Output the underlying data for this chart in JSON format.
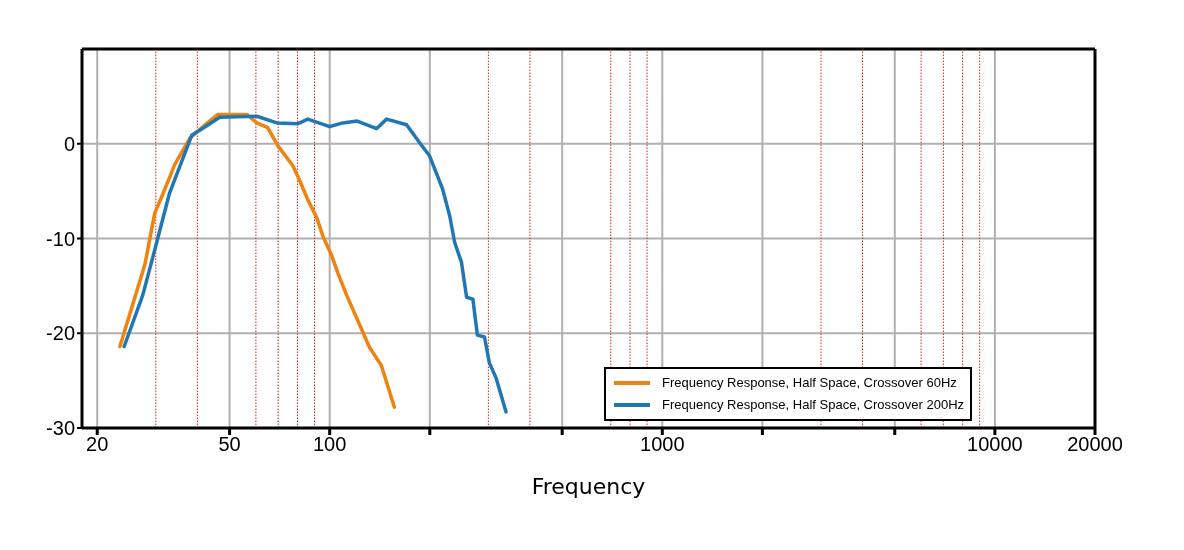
{
  "chart_data": {
    "type": "line",
    "xlabel": "Frequency",
    "log": "x",
    "xlim": [
      18,
      20000
    ],
    "xticks": [
      20,
      50,
      100,
      {
        "value": 200,
        "label": null
      },
      {
        "value": 500,
        "label": null
      },
      1000,
      {
        "value": 2000,
        "label": null
      },
      {
        "value": 5000,
        "label": null
      },
      10000,
      20000
    ],
    "ylim": [
      -30,
      10
    ],
    "yticks": [
      -30,
      -20,
      -10,
      0
    ],
    "grid": true,
    "legend": "bottom right",
    "line_style": "solid",
    "marker": "none",
    "ref_lines": [
      {
        "axis": "x",
        "value": 30,
        "color": "#dd2222",
        "line_style": "dotted"
      },
      {
        "axis": "x",
        "value": 40,
        "color": "#dd2222",
        "line_style": "dotted"
      },
      {
        "axis": "x",
        "value": 60,
        "color": "#dd2222",
        "line_style": "dotted"
      },
      {
        "axis": "x",
        "value": 70,
        "color": "#dd2222",
        "line_style": "dotted"
      },
      {
        "axis": "x",
        "value": 80,
        "color": "#dd2222",
        "line_style": "dotted"
      },
      {
        "axis": "x",
        "value": 90,
        "color": "#dd2222",
        "line_style": "dotted"
      },
      {
        "axis": "x",
        "value": 300,
        "color": "#dd2222",
        "line_style": "dotted"
      },
      {
        "axis": "x",
        "value": 400,
        "color": "#dd2222",
        "line_style": "dotted"
      },
      {
        "axis": "x",
        "value": 700,
        "color": "#dd2222",
        "line_style": "dotted"
      },
      {
        "axis": "x",
        "value": 800,
        "color": "#dd2222",
        "line_style": "dotted"
      },
      {
        "axis": "x",
        "value": 900,
        "color": "#dd2222",
        "line_style": "dotted"
      },
      {
        "axis": "x",
        "value": 3000,
        "color": "#dd2222",
        "line_style": "dotted"
      },
      {
        "axis": "x",
        "value": 4000,
        "color": "#dd2222",
        "line_style": "dotted"
      },
      {
        "axis": "x",
        "value": 6000,
        "color": "#dd2222",
        "line_style": "dotted"
      },
      {
        "axis": "x",
        "value": 7000,
        "color": "#dd2222",
        "line_style": "dotted"
      },
      {
        "axis": "x",
        "value": 8000,
        "color": "#dd2222",
        "line_style": "dotted"
      },
      {
        "axis": "x",
        "value": 9000,
        "color": "#dd2222",
        "line_style": "dotted"
      }
    ],
    "series": [
      {
        "name": "Frequency Response, Half Space, Crossover 60Hz",
        "color": "#f0820f",
        "x": [
          23.4,
          27.8,
          29.8,
          31.6,
          34.2,
          38,
          42.2,
          46.1,
          56.3,
          60.4,
          65.1,
          69.8,
          77.4,
          81.3,
          85.9,
          91.4,
          95.3,
          101.4,
          105.7,
          112.5,
          124.8,
          131.8,
          143,
          156.5
        ],
        "values": [
          -21.4,
          -12.8,
          -7.3,
          -5.2,
          -2.2,
          0.6,
          2,
          3.1,
          3.1,
          2.2,
          1.7,
          -0.2,
          -2.3,
          -3.9,
          -5.9,
          -7.8,
          -9.7,
          -11.8,
          -13.6,
          -16,
          -19.6,
          -21.5,
          -23.4,
          -27.8
        ]
      },
      {
        "name": "Frequency Response, Half Space, Crossover 200Hz",
        "color": "#1f77b4",
        "x": [
          24.1,
          27.4,
          30.2,
          33,
          35.5,
          38.5,
          42.7,
          46.7,
          60.4,
          69.3,
          80.1,
          85.9,
          100,
          109.4,
          121,
          138.4,
          148.3,
          170.3,
          186.4,
          199.8,
          218.6,
          229.5,
          237.5,
          249,
          258,
          269.5,
          278,
          292,
          302,
          317,
          339
        ],
        "values": [
          -21.4,
          -16,
          -10.4,
          -5.2,
          -2.3,
          0.9,
          1.9,
          2.8,
          2.9,
          2.2,
          2.1,
          2.6,
          1.8,
          2.2,
          2.4,
          1.6,
          2.6,
          2,
          0.1,
          -1.3,
          -4.8,
          -7.6,
          -10.4,
          -12.5,
          -16.2,
          -16.4,
          -20.2,
          -20.4,
          -23.1,
          -24.8,
          -28.3
        ]
      }
    ]
  }
}
